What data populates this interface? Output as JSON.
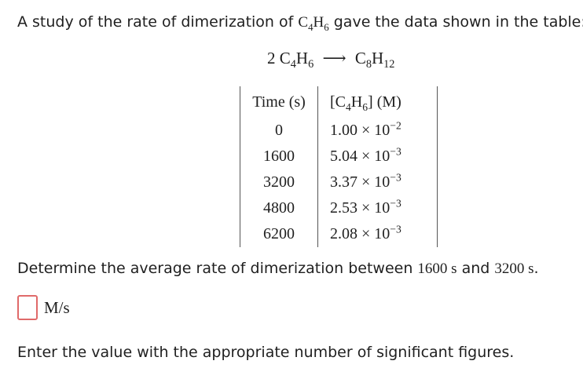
{
  "intro": {
    "prefix": "A study of the rate of dimerization of ",
    "compound": "C",
    "compound_sub1": "4",
    "compound_mid": "H",
    "compound_sub2": "6",
    "suffix": " gave the data shown in the table:"
  },
  "equation": {
    "reactant_coeff": "2",
    "reactant_c": "C",
    "reactant_c_sub": "4",
    "reactant_h": "H",
    "reactant_h_sub": "6",
    "arrow": "⟶",
    "product_c": "C",
    "product_c_sub": "8",
    "product_h": "H",
    "product_h_sub": "12"
  },
  "table": {
    "header_time": "Time (s)",
    "header_conc_open": "[C",
    "header_conc_sub1": "4",
    "header_conc_h": "H",
    "header_conc_sub2": "6",
    "header_conc_close": "] (M)",
    "rows": [
      {
        "time": "0",
        "mantissa": "1.00",
        "times": "×",
        "base": "10",
        "exp": "−2"
      },
      {
        "time": "1600",
        "mantissa": "5.04",
        "times": "×",
        "base": "10",
        "exp": "−3"
      },
      {
        "time": "3200",
        "mantissa": "3.37",
        "times": "×",
        "base": "10",
        "exp": "−3"
      },
      {
        "time": "4800",
        "mantissa": "2.53",
        "times": "×",
        "base": "10",
        "exp": "−3"
      },
      {
        "time": "6200",
        "mantissa": "2.08",
        "times": "×",
        "base": "10",
        "exp": "−3"
      }
    ]
  },
  "question": {
    "prefix": "Determine the average rate of dimerization between ",
    "t1": "1600 s",
    "and": " and ",
    "t2": "3200 s",
    "period": "."
  },
  "answer": {
    "value": "",
    "unit": "M/s"
  },
  "hint": "Enter the value with the appropriate number of significant figures."
}
